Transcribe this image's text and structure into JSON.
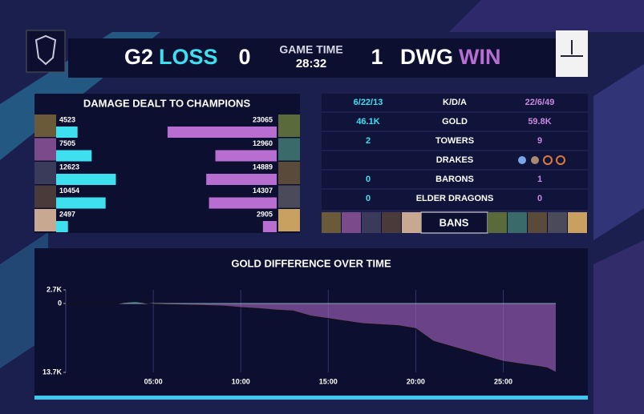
{
  "header": {
    "team_left": "G2",
    "result_left": "LOSS",
    "score_left": 0,
    "game_time_label": "GAME TIME",
    "game_time": "28:32",
    "score_right": 1,
    "team_right": "DWG",
    "result_right": "WIN"
  },
  "damage": {
    "title": "DAMAGE DEALT TO CHAMPIONS",
    "left_color": "#3ee0f0",
    "right_color": "#b86ed0",
    "left_values": [
      4523,
      7505,
      12623,
      10454,
      2497
    ],
    "right_values": [
      23065,
      12960,
      14889,
      14307,
      2905
    ]
  },
  "stats": {
    "rows": [
      {
        "left": "6/22/13",
        "label": "K/D/A",
        "right": "22/6/49"
      },
      {
        "left": "46.1K",
        "label": "GOLD",
        "right": "59.8K"
      },
      {
        "left": 2,
        "label": "TOWERS",
        "right": 9
      },
      {
        "label": "DRAKES"
      },
      {
        "left": 0,
        "label": "BARONS",
        "right": 1
      },
      {
        "left": 0,
        "label": "ELDER DRAGONS",
        "right": 0
      }
    ],
    "bans_label": "BANS"
  },
  "gold_chart": {
    "type": "area",
    "title": "GOLD DIFFERENCE OVER TIME",
    "x": [
      0,
      3,
      3.6,
      4,
      4.5,
      5,
      6,
      7,
      8,
      9,
      10,
      11,
      12,
      13,
      14,
      15,
      16,
      17,
      18,
      19,
      20,
      21,
      22,
      23,
      24,
      25,
      26,
      27,
      27.5,
      28
    ],
    "values": [
      0,
      0,
      300,
      400,
      100,
      -100,
      -200,
      -300,
      -400,
      -500,
      -800,
      -1000,
      -1300,
      -1500,
      -2500,
      -3000,
      -3500,
      -4000,
      -4200,
      -4400,
      -5000,
      -7500,
      -8500,
      -9500,
      -10500,
      -11500,
      -12000,
      -12500,
      -12800,
      -13700
    ],
    "positive_color": "#3ee0f0",
    "negative_color": "#b86ed0",
    "xlim": [
      0,
      28
    ],
    "ylim": [
      -13700,
      2700
    ],
    "xticks": [
      {
        "value": 5,
        "label": "05:00"
      },
      {
        "value": 10,
        "label": "10:00"
      },
      {
        "value": 15,
        "label": "15:00"
      },
      {
        "value": 20,
        "label": "20:00"
      },
      {
        "value": 25,
        "label": "25:00"
      }
    ],
    "yticks": [
      {
        "value": 2700,
        "label": "2.7K"
      },
      0,
      {
        "value": -13700,
        "label": "13.7K"
      }
    ],
    "grid": true
  }
}
